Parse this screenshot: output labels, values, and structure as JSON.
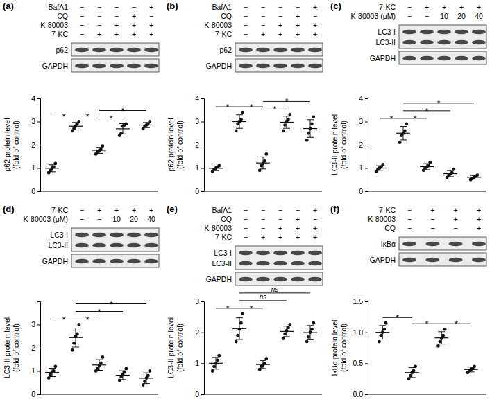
{
  "chart_data": [
    {
      "type": "scatter",
      "panel": "(a)",
      "treatments": [
        {
          "label": "BafA1",
          "marks": [
            "−",
            "−",
            "−",
            "−",
            "+"
          ]
        },
        {
          "label": "CQ",
          "marks": [
            "−",
            "−",
            "−",
            "+",
            "−"
          ]
        },
        {
          "label": "K-80003",
          "marks": [
            "−",
            "−",
            "+",
            "+",
            "+"
          ]
        },
        {
          "label": "7-KC",
          "marks": [
            "−",
            "+",
            "+",
            "+",
            "+"
          ]
        }
      ],
      "blots": [
        [
          "p62"
        ],
        [
          "GAPDH"
        ]
      ],
      "y_label": [
        "p62 protein level",
        "(fold of control)"
      ],
      "categories": [
        null,
        null,
        null,
        null,
        null
      ],
      "tick_labels": "y",
      "ylim": [
        0,
        4
      ],
      "yticks": [
        0,
        1,
        2,
        3,
        4
      ],
      "points": [
        [
          0.8,
          0.9,
          1.0,
          1.05,
          1.2
        ],
        [
          2.6,
          2.7,
          2.8,
          2.9,
          3.0
        ],
        [
          1.6,
          1.7,
          1.75,
          1.8,
          1.95
        ],
        [
          2.4,
          2.5,
          2.8,
          2.85,
          2.9
        ],
        [
          2.7,
          2.8,
          2.85,
          2.9,
          3.0
        ]
      ],
      "means": [
        0.99,
        2.8,
        1.76,
        2.69,
        2.85
      ],
      "errors": [
        0.15,
        0.16,
        0.13,
        0.22,
        0.11
      ],
      "significance": [
        {
          "groups": [
            0,
            1
          ],
          "label": "*"
        },
        {
          "groups": [
            1,
            2
          ],
          "label": "*"
        },
        {
          "groups": [
            2,
            3
          ],
          "label": "*"
        },
        {
          "groups": [
            2,
            4
          ],
          "label": "*"
        }
      ]
    },
    {
      "type": "scatter",
      "panel": "(b)",
      "treatments": [
        {
          "label": "BafA1",
          "marks": [
            "−",
            "−",
            "−",
            "−",
            "+"
          ]
        },
        {
          "label": "CQ",
          "marks": [
            "−",
            "−",
            "−",
            "+",
            "−"
          ]
        },
        {
          "label": "K-80003",
          "marks": [
            "−",
            "−",
            "+",
            "+",
            "+"
          ]
        },
        {
          "label": "7-KC",
          "marks": [
            "−",
            "+",
            "+",
            "+",
            "+"
          ]
        }
      ],
      "blots": [
        [
          "p62"
        ],
        [
          "GAPDH"
        ]
      ],
      "y_label": [
        "p62 protein level",
        "(fold of control)"
      ],
      "categories": [
        null,
        null,
        null,
        null,
        null
      ],
      "tick_labels": "y",
      "ylim": [
        0,
        4
      ],
      "yticks": [
        0,
        1,
        2,
        3,
        4
      ],
      "points": [
        [
          0.85,
          0.95,
          1.0,
          1.05,
          1.1
        ],
        [
          2.6,
          2.9,
          3.0,
          3.1,
          3.4
        ],
        [
          0.9,
          1.1,
          1.2,
          1.3,
          1.6
        ],
        [
          2.6,
          2.85,
          3.0,
          3.1,
          3.3
        ],
        [
          2.2,
          2.5,
          2.7,
          2.9,
          3.2
        ]
      ],
      "means": [
        0.99,
        3.0,
        1.22,
        2.97,
        2.7
      ],
      "errors": [
        0.1,
        0.29,
        0.26,
        0.26,
        0.38
      ],
      "significance": [
        {
          "groups": [
            0,
            1
          ],
          "label": "*"
        },
        {
          "groups": [
            1,
            2
          ],
          "label": "*"
        },
        {
          "groups": [
            2,
            3
          ],
          "label": "*"
        },
        {
          "groups": [
            2,
            4
          ],
          "label": "*"
        }
      ]
    },
    {
      "type": "scatter",
      "panel": "(c)",
      "treatments": [
        {
          "label": "7-KC",
          "marks": [
            "−",
            "+",
            "+",
            "+",
            "+"
          ]
        },
        {
          "label": "K-80003 (μM)",
          "marks": [
            "−",
            "−",
            "10",
            "20",
            "40"
          ]
        }
      ],
      "blots": [
        [
          "LC3-I",
          "LC3-II"
        ],
        [
          "GAPDH"
        ]
      ],
      "y_label": [
        "LC3-II protein level",
        "(fold of control)"
      ],
      "categories": [
        null,
        null,
        null,
        null,
        null
      ],
      "tick_labels": "y",
      "ylim": [
        0,
        4
      ],
      "yticks": [
        0,
        1,
        2,
        3,
        4
      ],
      "points": [
        [
          0.85,
          0.95,
          1.0,
          1.05,
          1.15
        ],
        [
          2.1,
          2.4,
          2.5,
          2.6,
          2.9
        ],
        [
          0.9,
          1.0,
          1.05,
          1.1,
          1.25
        ],
        [
          0.6,
          0.7,
          0.75,
          0.8,
          0.95
        ],
        [
          0.5,
          0.55,
          0.6,
          0.65,
          0.7
        ]
      ],
      "means": [
        1.0,
        2.5,
        1.06,
        0.76,
        0.6
      ],
      "errors": [
        0.1,
        0.29,
        0.13,
        0.13,
        0.08
      ],
      "significance": [
        {
          "groups": [
            0,
            1
          ],
          "label": "*"
        },
        {
          "groups": [
            1,
            2
          ],
          "label": "*"
        },
        {
          "groups": [
            1,
            3
          ],
          "label": "*"
        },
        {
          "groups": [
            1,
            4
          ],
          "label": "*"
        }
      ]
    },
    {
      "type": "scatter",
      "panel": "(d)",
      "treatments": [
        {
          "label": "7-KC",
          "marks": [
            "−",
            "+",
            "+",
            "+",
            "+"
          ]
        },
        {
          "label": "K-80003 (μM)",
          "marks": [
            "−",
            "−",
            "10",
            "20",
            "40"
          ]
        }
      ],
      "blots": [
        [
          "LC3-I",
          "LC3-II"
        ],
        [
          "GAPDH"
        ]
      ],
      "y_label": [
        "LC3-II protein level",
        "(fold of control)"
      ],
      "categories": [
        null,
        null,
        null,
        null,
        null
      ],
      "tick_labels": "y",
      "ylim": [
        0,
        4
      ],
      "yticks": [
        0,
        1,
        2,
        3
      ],
      "points": [
        [
          0.7,
          0.85,
          0.95,
          1.0,
          1.2
        ],
        [
          1.9,
          2.2,
          2.5,
          2.6,
          3.0
        ],
        [
          1.0,
          1.1,
          1.25,
          1.35,
          1.6
        ],
        [
          0.6,
          0.75,
          0.85,
          0.95,
          1.1
        ],
        [
          0.4,
          0.55,
          0.7,
          0.8,
          1.0
        ]
      ],
      "means": [
        0.94,
        2.44,
        1.26,
        0.82,
        0.69
      ],
      "errors": [
        0.18,
        0.41,
        0.23,
        0.19,
        0.23
      ],
      "significance": [
        {
          "groups": [
            0,
            1
          ],
          "label": "*"
        },
        {
          "groups": [
            1,
            2
          ],
          "label": "*"
        },
        {
          "groups": [
            1,
            3
          ],
          "label": "*"
        },
        {
          "groups": [
            1,
            4
          ],
          "label": "*"
        }
      ]
    },
    {
      "type": "scatter",
      "panel": "(e)",
      "treatments": [
        {
          "label": "BafA1",
          "marks": [
            "−",
            "−",
            "−",
            "−",
            "+"
          ]
        },
        {
          "label": "CQ",
          "marks": [
            "−",
            "−",
            "−",
            "+",
            "−"
          ]
        },
        {
          "label": "K-80003",
          "marks": [
            "−",
            "−",
            "+",
            "+",
            "+"
          ]
        },
        {
          "label": "7-KC",
          "marks": [
            "−",
            "+",
            "+",
            "+",
            "+"
          ]
        }
      ],
      "blots": [
        [
          "LC3-I",
          "LC3-II"
        ],
        [
          "GAPDH"
        ]
      ],
      "y_label": [
        "LC3-II protein level",
        "(fold of control)"
      ],
      "categories": [
        null,
        null,
        null,
        null,
        null
      ],
      "tick_labels": "y",
      "ylim": [
        0,
        3
      ],
      "yticks": [
        0,
        1,
        2,
        3
      ],
      "points": [
        [
          0.75,
          0.9,
          1.0,
          1.1,
          1.25
        ],
        [
          1.7,
          1.9,
          2.1,
          2.3,
          2.6
        ],
        [
          0.8,
          0.9,
          0.95,
          1.0,
          1.15
        ],
        [
          1.8,
          1.95,
          2.05,
          2.15,
          2.25
        ],
        [
          1.7,
          1.85,
          2.0,
          2.1,
          2.3
        ]
      ],
      "means": [
        1.0,
        2.12,
        0.96,
        2.03,
        1.99
      ],
      "errors": [
        0.19,
        0.35,
        0.13,
        0.17,
        0.23
      ],
      "significance": [
        {
          "groups": [
            0,
            1
          ],
          "label": "*"
        },
        {
          "groups": [
            1,
            2
          ],
          "label": "*"
        },
        {
          "groups": [
            1,
            3
          ],
          "label": "ns"
        },
        {
          "groups": [
            1,
            4
          ],
          "label": "ns"
        }
      ]
    },
    {
      "type": "scatter",
      "panel": "(f)",
      "treatments": [
        {
          "label": "7-KC",
          "marks": [
            "−",
            "+",
            "+",
            "+"
          ]
        },
        {
          "label": "K-80003",
          "marks": [
            "−",
            "−",
            "+",
            "+"
          ]
        },
        {
          "label": "CQ",
          "marks": [
            "−",
            "−",
            "−",
            "+"
          ]
        }
      ],
      "blots": [
        [
          "IκBα"
        ],
        [
          "GAPDH"
        ]
      ],
      "y_label": [
        "IκBα protein level",
        "(fold of control)"
      ],
      "categories": [
        null,
        null,
        null,
        null
      ],
      "tick_labels": "y",
      "ylim": [
        0,
        1.5
      ],
      "yticks": [
        {
          "value": 0,
          "label": "0.0"
        },
        0.5,
        {
          "value": 1,
          "label": "1.0"
        },
        1.5
      ],
      "points": [
        [
          0.85,
          0.95,
          1.0,
          1.05,
          1.15
        ],
        [
          0.25,
          0.3,
          0.35,
          0.38,
          0.45
        ],
        [
          0.78,
          0.85,
          0.9,
          0.95,
          1.05
        ],
        [
          0.35,
          0.38,
          0.4,
          0.42,
          0.45
        ]
      ],
      "means": [
        1.0,
        0.35,
        0.91,
        0.4
      ],
      "errors": [
        0.11,
        0.08,
        0.1,
        0.04
      ],
      "significance": [
        {
          "groups": [
            0,
            1
          ],
          "label": "*"
        },
        {
          "groups": [
            1,
            2
          ],
          "label": "*"
        },
        {
          "groups": [
            2,
            3
          ],
          "label": "*"
        }
      ]
    }
  ]
}
